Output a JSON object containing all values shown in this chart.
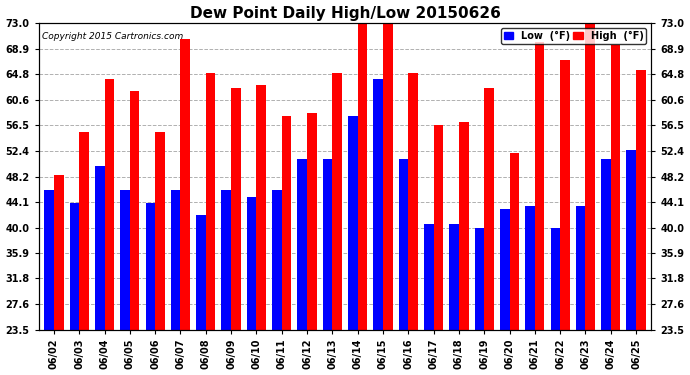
{
  "title": "Dew Point Daily High/Low 20150626",
  "copyright": "Copyright 2015 Cartronics.com",
  "dates": [
    "06/02",
    "06/03",
    "06/04",
    "06/05",
    "06/06",
    "06/07",
    "06/08",
    "06/09",
    "06/10",
    "06/11",
    "06/12",
    "06/13",
    "06/14",
    "06/15",
    "06/16",
    "06/17",
    "06/18",
    "06/19",
    "06/20",
    "06/21",
    "06/22",
    "06/23",
    "06/24",
    "06/25"
  ],
  "low": [
    46.0,
    44.0,
    50.0,
    46.0,
    44.0,
    46.0,
    42.0,
    46.0,
    45.0,
    46.0,
    51.0,
    51.0,
    58.0,
    64.0,
    51.0,
    40.5,
    40.5,
    40.0,
    43.0,
    43.5,
    40.0,
    43.5,
    51.0,
    52.5
  ],
  "high": [
    48.5,
    55.5,
    64.0,
    62.0,
    55.5,
    70.5,
    65.0,
    62.5,
    63.0,
    58.0,
    58.5,
    65.0,
    73.0,
    73.0,
    65.0,
    56.5,
    57.0,
    62.5,
    52.0,
    70.0,
    67.0,
    73.0,
    69.5,
    65.5
  ],
  "low_color": "#0000ff",
  "high_color": "#ff0000",
  "bg_color": "#ffffff",
  "grid_color": "#b0b0b0",
  "ylim_min": 23.5,
  "ylim_max": 73.0,
  "yticks": [
    23.5,
    27.6,
    31.8,
    35.9,
    40.0,
    44.1,
    48.2,
    52.4,
    56.5,
    60.6,
    64.8,
    68.9,
    73.0
  ],
  "title_fontsize": 11,
  "tick_fontsize": 7,
  "legend_low_label": "Low  (°F)",
  "legend_high_label": "High  (°F)"
}
